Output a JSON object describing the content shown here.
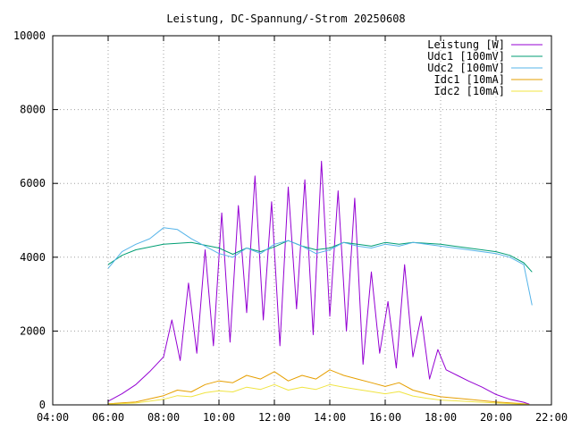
{
  "chart_data": {
    "type": "line",
    "title": "Leistung, DC-Spannung/-Strom 20250608",
    "xlabel": "",
    "ylabel": "",
    "xlim": [
      4,
      22
    ],
    "ylim": [
      0,
      10000
    ],
    "x_ticks": [
      {
        "value": 4,
        "label": "04:00"
      },
      {
        "value": 6,
        "label": "06:00"
      },
      {
        "value": 8,
        "label": "08:00"
      },
      {
        "value": 10,
        "label": "10:00"
      },
      {
        "value": 12,
        "label": "12:00"
      },
      {
        "value": 14,
        "label": "14:00"
      },
      {
        "value": 16,
        "label": "16:00"
      },
      {
        "value": 18,
        "label": "18:00"
      },
      {
        "value": 20,
        "label": "20:00"
      },
      {
        "value": 22,
        "label": "22:00"
      }
    ],
    "y_ticks": [
      {
        "value": 0,
        "label": "0"
      },
      {
        "value": 2000,
        "label": "2000"
      },
      {
        "value": 4000,
        "label": "4000"
      },
      {
        "value": 6000,
        "label": "6000"
      },
      {
        "value": 8000,
        "label": "8000"
      },
      {
        "value": 10000,
        "label": "10000"
      }
    ],
    "grid": true,
    "legend_position": "top-right",
    "series": [
      {
        "name": "Leistung [W]",
        "color": "#9400d3",
        "x": [
          6.0,
          6.5,
          7.0,
          7.5,
          8.0,
          8.3,
          8.6,
          8.9,
          9.2,
          9.5,
          9.8,
          10.1,
          10.4,
          10.7,
          11.0,
          11.3,
          11.6,
          11.9,
          12.2,
          12.5,
          12.8,
          13.1,
          13.4,
          13.7,
          14.0,
          14.3,
          14.6,
          14.9,
          15.2,
          15.5,
          15.8,
          16.1,
          16.4,
          16.7,
          17.0,
          17.3,
          17.6,
          17.9,
          18.2,
          18.6,
          19.0,
          19.5,
          20.0,
          20.5,
          21.0,
          21.2
        ],
        "values": [
          100,
          300,
          550,
          900,
          1300,
          2300,
          1200,
          3300,
          1400,
          4200,
          1600,
          5200,
          1700,
          5400,
          2500,
          6200,
          2300,
          5500,
          1600,
          5900,
          2600,
          6100,
          1900,
          6600,
          2400,
          5800,
          2000,
          5600,
          1100,
          3600,
          1400,
          2800,
          1000,
          3800,
          1300,
          2400,
          700,
          1500,
          950,
          800,
          650,
          480,
          280,
          150,
          70,
          20
        ]
      },
      {
        "name": "Udc1 [100mV]",
        "color": "#009e73",
        "x": [
          6.0,
          6.5,
          7.0,
          8.0,
          9.0,
          10.0,
          10.5,
          11.0,
          11.5,
          12.0,
          12.5,
          13.0,
          13.5,
          14.0,
          14.5,
          15.0,
          15.5,
          16.0,
          16.5,
          17.0,
          18.0,
          19.0,
          20.0,
          20.5,
          21.0,
          21.3
        ],
        "values": [
          3800,
          4050,
          4200,
          4350,
          4400,
          4250,
          4080,
          4250,
          4150,
          4280,
          4450,
          4300,
          4200,
          4250,
          4400,
          4350,
          4300,
          4400,
          4350,
          4400,
          4350,
          4250,
          4150,
          4050,
          3850,
          3600
        ]
      },
      {
        "name": "Udc2 [100mV]",
        "color": "#56b4e9",
        "x": [
          6.0,
          6.5,
          7.0,
          7.5,
          8.0,
          8.5,
          9.0,
          9.5,
          10.0,
          10.5,
          11.0,
          11.5,
          12.0,
          12.5,
          13.0,
          13.5,
          14.0,
          14.5,
          15.0,
          15.5,
          16.0,
          16.5,
          17.0,
          18.0,
          19.0,
          20.0,
          20.5,
          21.0,
          21.3
        ],
        "values": [
          3700,
          4150,
          4350,
          4500,
          4800,
          4750,
          4500,
          4300,
          4100,
          4000,
          4250,
          4100,
          4350,
          4450,
          4300,
          4100,
          4200,
          4400,
          4300,
          4250,
          4350,
          4300,
          4400,
          4300,
          4200,
          4100,
          4000,
          3800,
          2700
        ]
      },
      {
        "name": "Idc1 [10mA]",
        "color": "#e69f00",
        "x": [
          6.0,
          7.0,
          8.0,
          8.5,
          9.0,
          9.5,
          10.0,
          10.5,
          11.0,
          11.5,
          12.0,
          12.5,
          13.0,
          13.5,
          14.0,
          14.5,
          15.0,
          15.5,
          16.0,
          16.5,
          17.0,
          17.5,
          18.0,
          19.0,
          20.0,
          21.0,
          21.2
        ],
        "values": [
          30,
          80,
          250,
          400,
          350,
          550,
          650,
          600,
          800,
          700,
          900,
          650,
          800,
          700,
          950,
          800,
          700,
          600,
          500,
          600,
          400,
          300,
          220,
          150,
          80,
          30,
          10
        ]
      },
      {
        "name": "Idc2 [10mA]",
        "color": "#f0e442",
        "x": [
          6.0,
          7.0,
          8.0,
          8.5,
          9.0,
          9.5,
          10.0,
          10.5,
          11.0,
          11.5,
          12.0,
          12.5,
          13.0,
          13.5,
          14.0,
          14.5,
          15.0,
          15.5,
          16.0,
          16.5,
          17.0,
          17.5,
          18.0,
          19.0,
          20.0,
          21.0,
          21.2
        ],
        "values": [
          20,
          50,
          150,
          250,
          220,
          330,
          380,
          350,
          480,
          420,
          550,
          400,
          480,
          420,
          550,
          480,
          420,
          360,
          300,
          360,
          240,
          180,
          130,
          90,
          50,
          20,
          5
        ]
      }
    ]
  }
}
